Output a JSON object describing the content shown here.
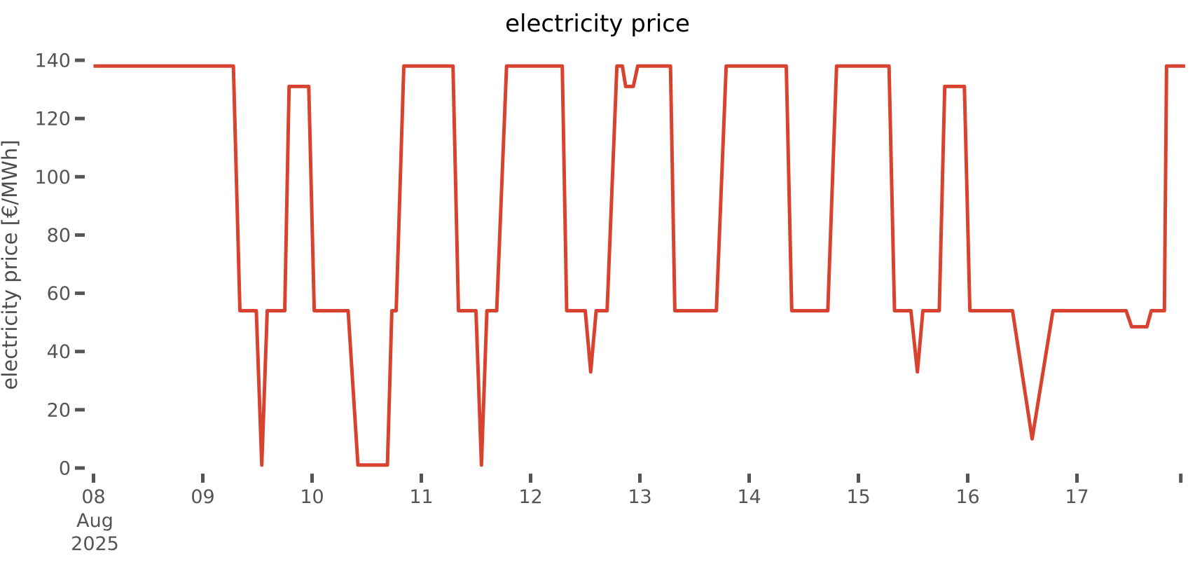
{
  "chart_data": {
    "type": "line",
    "title": "electricity price",
    "xlabel": "",
    "ylabel": "electricity price [€/MWh]",
    "series_name": "electricity price",
    "line_color": "#d8432f",
    "tick_color": "#555555",
    "title_color": "#000000",
    "grid": false,
    "legend": "none",
    "ylim": [
      0,
      140
    ],
    "y_ticks": [
      0,
      20,
      40,
      60,
      80,
      100,
      120,
      140
    ],
    "x_unit": "days since 2025-08-08 00:00",
    "xlim": [
      0,
      10.05
    ],
    "x_ticks": [
      {
        "t": 0,
        "label": "08",
        "sublabels": [
          "Aug",
          "2025"
        ]
      },
      {
        "t": 1,
        "label": "09",
        "sublabels": []
      },
      {
        "t": 2,
        "label": "10",
        "sublabels": []
      },
      {
        "t": 3,
        "label": "11",
        "sublabels": []
      },
      {
        "t": 4,
        "label": "12",
        "sublabels": []
      },
      {
        "t": 5,
        "label": "13",
        "sublabels": []
      },
      {
        "t": 6,
        "label": "14",
        "sublabels": []
      },
      {
        "t": 7,
        "label": "15",
        "sublabels": []
      },
      {
        "t": 8,
        "label": "16",
        "sublabels": []
      },
      {
        "t": 9,
        "label": "17",
        "sublabels": []
      },
      {
        "t": 9.95,
        "label": "",
        "sublabels": []
      }
    ],
    "points": [
      [
        0.0,
        138
      ],
      [
        1.28,
        138
      ],
      [
        1.34,
        54
      ],
      [
        1.49,
        54
      ],
      [
        1.54,
        1
      ],
      [
        1.59,
        54
      ],
      [
        1.75,
        54
      ],
      [
        1.79,
        131
      ],
      [
        1.97,
        131
      ],
      [
        2.02,
        54
      ],
      [
        2.33,
        54
      ],
      [
        2.42,
        1
      ],
      [
        2.69,
        1
      ],
      [
        2.73,
        54
      ],
      [
        2.77,
        54
      ],
      [
        2.84,
        138
      ],
      [
        3.29,
        138
      ],
      [
        3.34,
        54
      ],
      [
        3.5,
        54
      ],
      [
        3.55,
        1
      ],
      [
        3.6,
        54
      ],
      [
        3.69,
        54
      ],
      [
        3.78,
        138
      ],
      [
        4.29,
        138
      ],
      [
        4.33,
        54
      ],
      [
        4.5,
        54
      ],
      [
        4.55,
        33
      ],
      [
        4.6,
        54
      ],
      [
        4.7,
        54
      ],
      [
        4.79,
        138
      ],
      [
        4.84,
        138
      ],
      [
        4.87,
        131
      ],
      [
        4.94,
        131
      ],
      [
        4.98,
        138
      ],
      [
        5.28,
        138
      ],
      [
        5.32,
        54
      ],
      [
        5.7,
        54
      ],
      [
        5.79,
        138
      ],
      [
        6.34,
        138
      ],
      [
        6.39,
        54
      ],
      [
        6.72,
        54
      ],
      [
        6.8,
        138
      ],
      [
        7.28,
        138
      ],
      [
        7.33,
        54
      ],
      [
        7.48,
        54
      ],
      [
        7.54,
        33
      ],
      [
        7.59,
        54
      ],
      [
        7.74,
        54
      ],
      [
        7.79,
        131
      ],
      [
        7.97,
        131
      ],
      [
        8.02,
        54
      ],
      [
        8.41,
        54
      ],
      [
        8.59,
        10
      ],
      [
        8.78,
        54
      ],
      [
        9.45,
        54
      ],
      [
        9.5,
        48.5
      ],
      [
        9.64,
        48.5
      ],
      [
        9.68,
        54
      ],
      [
        9.8,
        54
      ],
      [
        9.82,
        138
      ],
      [
        9.99,
        138
      ]
    ]
  }
}
